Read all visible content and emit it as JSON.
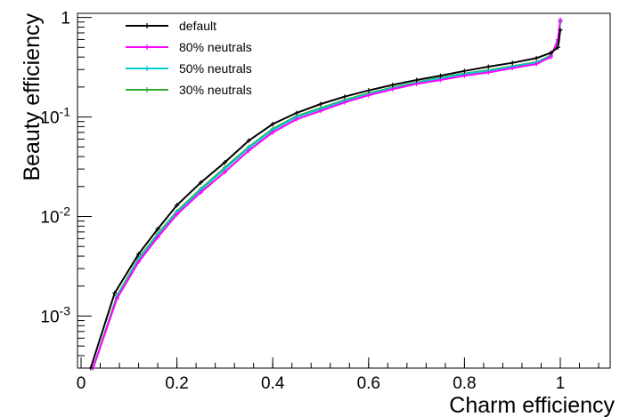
{
  "chart_data": {
    "type": "line",
    "title": "",
    "xlabel": "Charm efficiency",
    "ylabel": "Beauty efficiency",
    "xlim": [
      0,
      1.1
    ],
    "ylim": [
      0.0003,
      1.1
    ],
    "yscale": "log",
    "grid": false,
    "legend_position": "top-left",
    "x_ticks": [
      {
        "value": 0,
        "label": "0"
      },
      {
        "value": 0.2,
        "label": "0.2"
      },
      {
        "value": 0.4,
        "label": "0.4"
      },
      {
        "value": 0.6,
        "label": "0.6"
      },
      {
        "value": 0.8,
        "label": "0.8"
      },
      {
        "value": 1.0,
        "label": "1"
      }
    ],
    "y_ticks": [
      {
        "value": 0.001,
        "base": "10",
        "exp": "-3"
      },
      {
        "value": 0.01,
        "base": "10",
        "exp": "-2"
      },
      {
        "value": 0.1,
        "base": "10",
        "exp": "-1"
      },
      {
        "value": 1,
        "base": "1",
        "exp": ""
      }
    ],
    "series": [
      {
        "name": "default",
        "color": "#000000",
        "x": [
          0.02,
          0.07,
          0.12,
          0.16,
          0.2,
          0.25,
          0.3,
          0.35,
          0.4,
          0.45,
          0.5,
          0.55,
          0.6,
          0.65,
          0.7,
          0.75,
          0.8,
          0.85,
          0.9,
          0.95,
          0.98,
          0.995,
          1.0
        ],
        "y": [
          0.0003,
          0.0017,
          0.0042,
          0.0075,
          0.013,
          0.022,
          0.035,
          0.058,
          0.085,
          0.11,
          0.135,
          0.16,
          0.185,
          0.21,
          0.235,
          0.26,
          0.29,
          0.32,
          0.35,
          0.39,
          0.44,
          0.5,
          0.75
        ]
      },
      {
        "name": "80% neutrals",
        "color": "#ff00ff",
        "x": [
          0.025,
          0.075,
          0.12,
          0.16,
          0.2,
          0.25,
          0.3,
          0.35,
          0.4,
          0.45,
          0.5,
          0.55,
          0.6,
          0.65,
          0.7,
          0.75,
          0.8,
          0.85,
          0.9,
          0.95,
          0.98,
          0.995,
          1.0
        ],
        "y": [
          0.0003,
          0.0015,
          0.0035,
          0.0062,
          0.0105,
          0.0175,
          0.028,
          0.046,
          0.07,
          0.095,
          0.115,
          0.14,
          0.165,
          0.19,
          0.215,
          0.235,
          0.26,
          0.28,
          0.31,
          0.34,
          0.4,
          0.6,
          0.95
        ]
      },
      {
        "name": "50% neutrals",
        "color": "#00cccc",
        "x": [
          0.025,
          0.075,
          0.12,
          0.16,
          0.2,
          0.25,
          0.3,
          0.35,
          0.4,
          0.45,
          0.5,
          0.55,
          0.6,
          0.65,
          0.7,
          0.75,
          0.8,
          0.85,
          0.9,
          0.95,
          0.98,
          0.995,
          1.0
        ],
        "y": [
          0.0003,
          0.00155,
          0.0037,
          0.0065,
          0.011,
          0.0185,
          0.03,
          0.049,
          0.074,
          0.1,
          0.12,
          0.145,
          0.17,
          0.195,
          0.22,
          0.245,
          0.27,
          0.29,
          0.32,
          0.35,
          0.41,
          0.58,
          0.92
        ]
      },
      {
        "name": "30% neutrals",
        "color": "#33aa33",
        "x": [
          0.025,
          0.075,
          0.12,
          0.16,
          0.2,
          0.25,
          0.3,
          0.35,
          0.4,
          0.45,
          0.5,
          0.55,
          0.6,
          0.65,
          0.7,
          0.75,
          0.8,
          0.85,
          0.9,
          0.95,
          0.98,
          0.995,
          1.0
        ],
        "y": [
          0.0003,
          0.0016,
          0.0038,
          0.0067,
          0.0113,
          0.019,
          0.031,
          0.05,
          0.076,
          0.102,
          0.123,
          0.148,
          0.173,
          0.198,
          0.223,
          0.248,
          0.274,
          0.295,
          0.325,
          0.355,
          0.415,
          0.56,
          0.9
        ]
      }
    ]
  }
}
